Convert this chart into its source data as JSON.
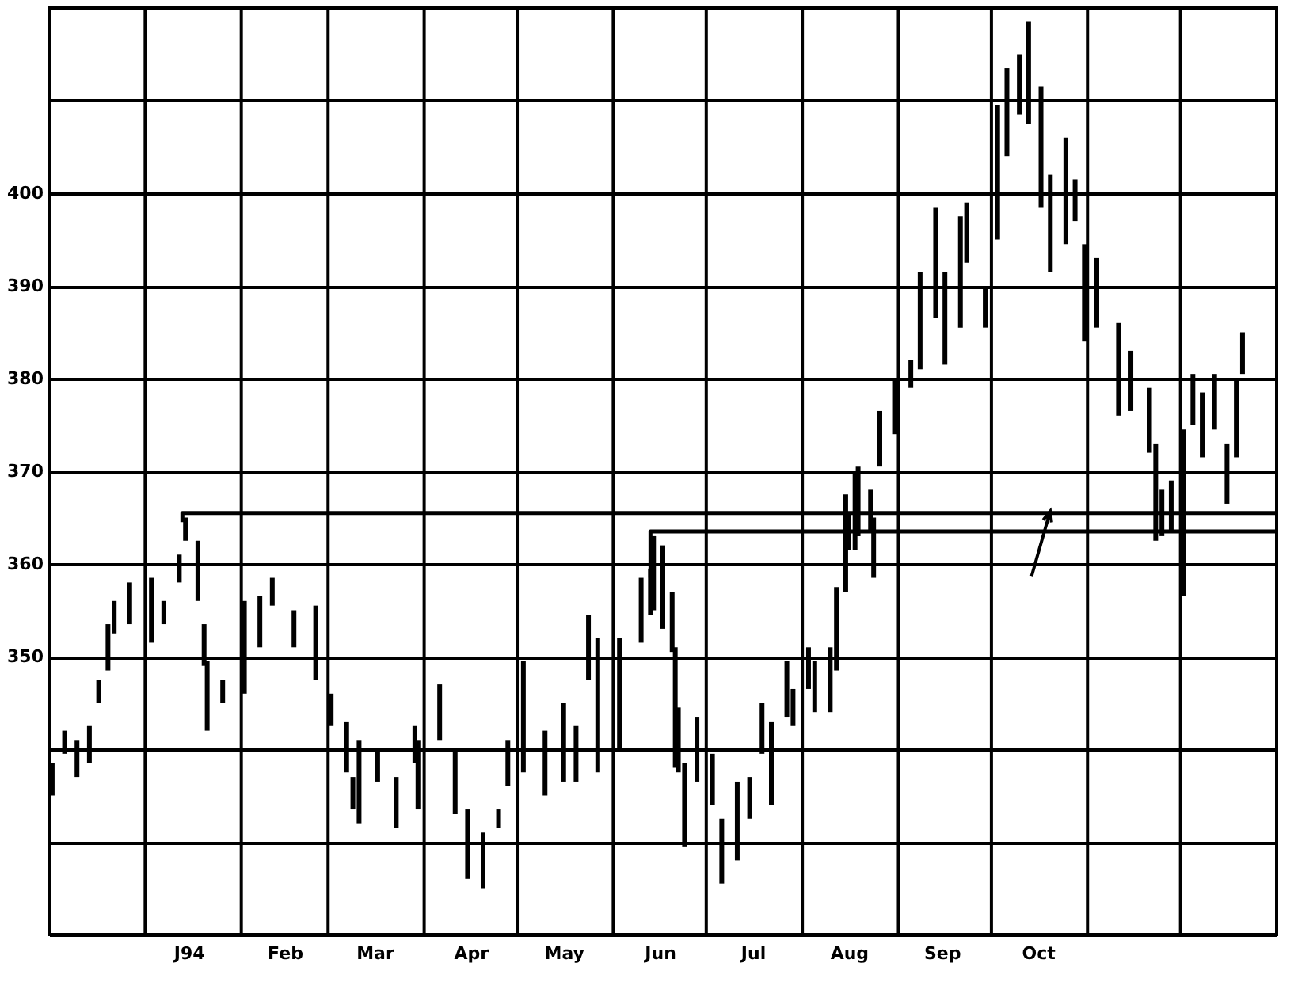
{
  "chart_data": {
    "type": "bar",
    "x": [
      "1993-12-02",
      "1993-12-06",
      "1993-12-10",
      "1993-12-14",
      "1993-12-17",
      "1993-12-20",
      "1993-12-22",
      "1993-12-27",
      "1994-01-03",
      "1994-01-07",
      "1994-01-12",
      "1994-01-14",
      "1994-01-18",
      "1994-01-20",
      "1994-01-21",
      "1994-01-26",
      "1994-02-02",
      "1994-02-07",
      "1994-02-11",
      "1994-02-18",
      "1994-02-25",
      "1994-03-02",
      "1994-03-07",
      "1994-03-09",
      "1994-03-11",
      "1994-03-17",
      "1994-03-23",
      "1994-03-29",
      "1994-03-30",
      "1994-04-06",
      "1994-04-11",
      "1994-04-15",
      "1994-04-20",
      "1994-04-25",
      "1994-04-28",
      "1994-05-03",
      "1994-05-10",
      "1994-05-16",
      "1994-05-20",
      "1994-05-24",
      "1994-05-27",
      "1994-06-03",
      "1994-06-10",
      "1994-06-13",
      "1994-06-14",
      "1994-06-17",
      "1994-06-20",
      "1994-06-21",
      "1994-06-22",
      "1994-06-24",
      "1994-06-28",
      "1994-07-03",
      "1994-07-06",
      "1994-07-11",
      "1994-07-15",
      "1994-07-19",
      "1994-07-22",
      "1994-07-27",
      "1994-07-29",
      "1994-08-03",
      "1994-08-05",
      "1994-08-10",
      "1994-08-12",
      "1994-08-15",
      "1994-08-16",
      "1994-08-18",
      "1994-08-19",
      "1994-08-23",
      "1994-08-24",
      "1994-08-26",
      "1994-08-31",
      "1994-09-05",
      "1994-09-08",
      "1994-09-13",
      "1994-09-16",
      "1994-09-21",
      "1994-09-23",
      "1994-09-29",
      "1994-10-03",
      "1994-10-06",
      "1994-10-10",
      "1994-10-13",
      "1994-10-17",
      "1994-10-20",
      "1994-10-25",
      "1994-10-28",
      "1994-10-31",
      "1994-11-04",
      "1994-11-11",
      "1994-11-15",
      "1994-11-21",
      "1994-11-23",
      "1994-11-25",
      "1994-11-28",
      "1994-12-02",
      "1994-12-05",
      "1994-12-08",
      "1994-12-12",
      "1994-12-16",
      "1994-12-19",
      "1994-12-21"
    ],
    "series": [
      {
        "color": "#000000",
        "base": [
          335.0,
          339.5,
          337.0,
          338.5,
          345.0,
          348.5,
          352.5,
          353.5,
          351.5,
          353.5,
          358.0,
          362.5,
          356.0,
          349.0,
          342.0,
          345.0,
          346.0,
          351.0,
          355.5,
          351.0,
          347.5,
          342.5,
          337.5,
          333.5,
          332.0,
          336.5,
          331.5,
          338.5,
          333.5,
          341.0,
          333.0,
          326.0,
          325.0,
          331.5,
          336.0,
          337.5,
          335.0,
          336.5,
          336.5,
          347.5,
          337.5,
          340.0,
          351.5,
          354.5,
          355.0,
          353.0,
          350.5,
          338.0,
          337.5,
          329.5,
          336.5,
          334.0,
          325.5,
          328.0,
          332.5,
          339.5,
          334.0,
          343.5,
          342.5,
          346.5,
          344.0,
          344.0,
          348.5,
          357.0,
          361.5,
          361.5,
          363.0,
          363.5,
          358.5,
          370.5,
          374.0,
          379.0,
          381.0,
          386.5,
          381.5,
          385.5,
          392.5,
          385.5,
          395.0,
          404.0,
          408.5,
          407.5,
          398.5,
          391.5,
          394.5,
          397.0,
          384.0,
          385.5,
          376.0,
          376.5,
          372.0,
          362.5,
          363.0,
          363.5,
          356.5,
          375.0,
          371.5,
          374.5,
          366.5,
          371.5,
          380.5
        ],
        "values": [
          3.5,
          2.5,
          4,
          4,
          2.5,
          5,
          3.5,
          4.5,
          7,
          2.5,
          3,
          2.5,
          6.5,
          4.5,
          7.5,
          2.5,
          10,
          5.5,
          3,
          4,
          8,
          3.5,
          5.5,
          3.5,
          9,
          3.5,
          5.5,
          4,
          7.5,
          6,
          7,
          7.5,
          6,
          2,
          5,
          12,
          7,
          8.5,
          6,
          7,
          14.5,
          12,
          7,
          5,
          8,
          9,
          6.5,
          13,
          7,
          9,
          7,
          5.5,
          7,
          8.5,
          4.5,
          5.5,
          9,
          6,
          4,
          4.5,
          5.5,
          7,
          9,
          10.5,
          4,
          8.5,
          7.5,
          4.5,
          6.5,
          6,
          6,
          3,
          10.5,
          12,
          10,
          12,
          6.5,
          4.5,
          14.5,
          9.5,
          6.5,
          11,
          13,
          10.5,
          11.5,
          4.5,
          10.5,
          7.5,
          10,
          6.5,
          7,
          10.5,
          5,
          5.5,
          18,
          5.5,
          7,
          6,
          6.5,
          8.5,
          4.5
        ]
      },
      {
        "type": "line",
        "color": "#000000",
        "x": [
          "1994-01-13",
          "1994-01-13",
          "1995-01-01"
        ],
        "values": [
          364.5,
          365.5,
          365.5
        ]
      },
      {
        "type": "line",
        "color": "#000000",
        "x": [
          "1994-06-13",
          "1994-06-13",
          "1995-01-01"
        ],
        "values": [
          358.5,
          363.5,
          363.5
        ]
      }
    ],
    "xlim": [
      "1993-12-01",
      "1995-01-01"
    ],
    "xticks": [
      {
        "value": "1993-12-01",
        "label": null
      },
      {
        "value": "1994-01-01",
        "label": null
      },
      {
        "value": "1994-01-15",
        "label": "J94"
      },
      {
        "value": "1994-02-01",
        "label": null
      },
      {
        "value": "1994-02-15",
        "label": "Feb"
      },
      {
        "value": "1994-03-01",
        "label": null
      },
      {
        "value": "1994-03-16",
        "label": "Mar"
      },
      {
        "value": "1994-04-01",
        "label": null
      },
      {
        "value": "1994-04-16",
        "label": "Apr"
      },
      {
        "value": "1994-05-01",
        "label": null
      },
      {
        "value": "1994-05-16",
        "label": "May"
      },
      {
        "value": "1994-06-01",
        "label": null
      },
      {
        "value": "1994-06-16",
        "label": "Jun"
      },
      {
        "value": "1994-07-01",
        "label": null
      },
      {
        "value": "1994-07-16",
        "label": "Jul"
      },
      {
        "value": "1994-08-01",
        "label": null
      },
      {
        "value": "1994-08-16",
        "label": "Aug"
      },
      {
        "value": "1994-09-01",
        "label": null
      },
      {
        "value": "1994-09-15",
        "label": "Sep"
      },
      {
        "value": "1994-10-01",
        "label": null
      },
      {
        "value": "1994-10-16",
        "label": "Oct"
      },
      {
        "value": "1994-11-01",
        "label": null
      },
      {
        "value": "1994-12-01",
        "label": null
      },
      {
        "value": "1995-01-01",
        "label": null
      }
    ],
    "ylim": [
      320,
      420
    ],
    "yticks": [
      {
        "value": 330,
        "label": null
      },
      {
        "value": 340,
        "label": null
      },
      350,
      360,
      370,
      380,
      390,
      400,
      {
        "value": 410,
        "label": null
      }
    ],
    "grid": true
  }
}
